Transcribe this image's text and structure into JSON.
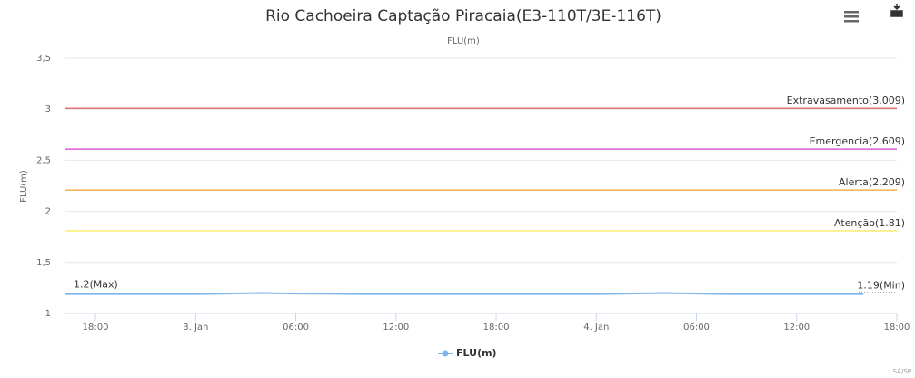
{
  "chart_data": {
    "type": "line",
    "title": "Rio Cachoeira Captação Piracaia(E3-110T/3E-116T)",
    "subtitle": "FLU(m)",
    "ylabel": "FLU(m)",
    "credits": "SA/SP",
    "ylim": [
      1,
      3.5
    ],
    "yticks": [
      1,
      {
        "value": 1.5,
        "label": "1,5"
      },
      2,
      {
        "value": 2.5,
        "label": "2,5"
      },
      3,
      {
        "value": 3.5,
        "label": "3,5"
      }
    ],
    "xlim": [
      16.2,
      66
    ],
    "xticks": [
      {
        "value": 18,
        "label": "18:00"
      },
      {
        "value": 24,
        "label": "3. Jan"
      },
      {
        "value": 30,
        "label": "06:00"
      },
      {
        "value": 36,
        "label": "12:00"
      },
      {
        "value": 42,
        "label": "18:00"
      },
      {
        "value": 48,
        "label": "4. Jan"
      },
      {
        "value": 54,
        "label": "06:00"
      },
      {
        "value": 60,
        "label": "12:00"
      },
      {
        "value": 66,
        "label": "18:00"
      }
    ],
    "grid": true,
    "series": [
      {
        "name": "FLU(m)",
        "color": "#7cb5ec",
        "x": [
          16.2,
          18,
          20,
          22,
          24,
          26,
          28,
          30,
          32,
          34,
          36,
          38,
          40,
          42,
          44,
          46,
          48,
          50,
          52,
          54,
          56,
          58,
          60,
          62,
          64
        ],
        "values": [
          1.19,
          1.19,
          1.19,
          1.19,
          1.19,
          1.195,
          1.2,
          1.195,
          1.193,
          1.19,
          1.19,
          1.19,
          1.19,
          1.19,
          1.19,
          1.19,
          1.19,
          1.195,
          1.2,
          1.195,
          1.19,
          1.19,
          1.19,
          1.19,
          1.19
        ]
      }
    ],
    "plot_lines": [
      {
        "label": "Extravasamento(3.009)",
        "value": 3.009,
        "color": "#e0474c"
      },
      {
        "label": "Emergencia(2.609)",
        "value": 2.609,
        "color": "#d63ad6"
      },
      {
        "label": "Alerta(2.209)",
        "value": 2.209,
        "color": "#f0a030"
      },
      {
        "label": "Atenção(1.81)",
        "value": 1.81,
        "color": "#f5e642"
      }
    ],
    "annotations": [
      {
        "label": "1.2(Max)",
        "value": 1.2
      },
      {
        "label": "1.19(Min)",
        "value": 1.19
      }
    ]
  }
}
